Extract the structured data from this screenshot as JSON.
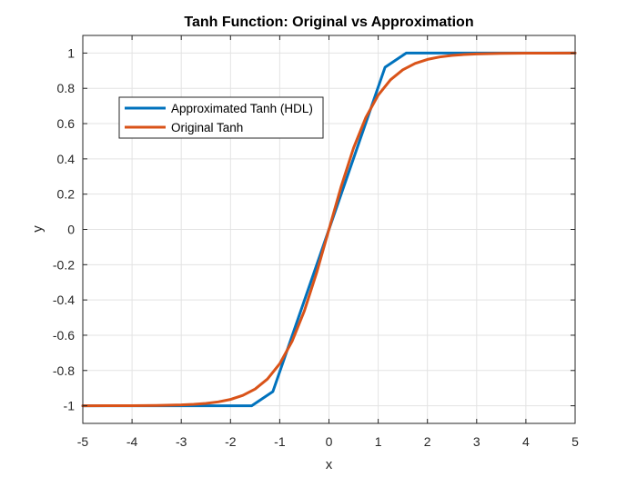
{
  "chart_data": {
    "type": "line",
    "title": "Tanh Function: Original vs Approximation",
    "xlabel": "x",
    "ylabel": "y",
    "xlim": [
      -5,
      5
    ],
    "ylim": [
      -1.1,
      1.1
    ],
    "xticks": [
      -5,
      -4,
      -3,
      -2,
      -1,
      0,
      1,
      2,
      3,
      4,
      5
    ],
    "yticks": [
      -1,
      -0.8,
      -0.6,
      -0.4,
      -0.2,
      0,
      0.2,
      0.4,
      0.6,
      0.8,
      1
    ],
    "xtick_labels": [
      "-5",
      "-4",
      "-3",
      "-2",
      "-1",
      "0",
      "1",
      "2",
      "3",
      "4",
      "5"
    ],
    "ytick_labels": [
      "-1",
      "-0.8",
      "-0.6",
      "-0.4",
      "-0.2",
      "0",
      "0.2",
      "0.4",
      "0.6",
      "0.8",
      "1"
    ],
    "grid": true,
    "legend_position": "upper-left",
    "series": [
      {
        "name": "Approximated Tanh (HDL)",
        "color": "#0072BD",
        "x": [
          -5,
          -1.57,
          -1.14,
          0,
          1.14,
          1.57,
          5
        ],
        "y": [
          -1,
          -1,
          -0.92,
          0,
          0.92,
          1,
          1
        ]
      },
      {
        "name": "Original Tanh",
        "color": "#D95319",
        "x": [
          -5,
          -4.5,
          -4,
          -3.5,
          -3,
          -2.75,
          -2.5,
          -2.25,
          -2,
          -1.75,
          -1.5,
          -1.25,
          -1,
          -0.75,
          -0.5,
          -0.25,
          0,
          0.25,
          0.5,
          0.75,
          1,
          1.25,
          1.5,
          1.75,
          2,
          2.25,
          2.5,
          2.75,
          3,
          3.5,
          4,
          4.5,
          5
        ],
        "y": [
          -0.9999,
          -0.9998,
          -0.9993,
          -0.9982,
          -0.9951,
          -0.9918,
          -0.9866,
          -0.978,
          -0.964,
          -0.9414,
          -0.9051,
          -0.8483,
          -0.7616,
          -0.6351,
          -0.4621,
          -0.2449,
          0,
          0.2449,
          0.4621,
          0.6351,
          0.7616,
          0.8483,
          0.9051,
          0.9414,
          0.964,
          0.978,
          0.9866,
          0.9918,
          0.9951,
          0.9982,
          0.9993,
          0.9998,
          0.9999
        ]
      }
    ]
  }
}
